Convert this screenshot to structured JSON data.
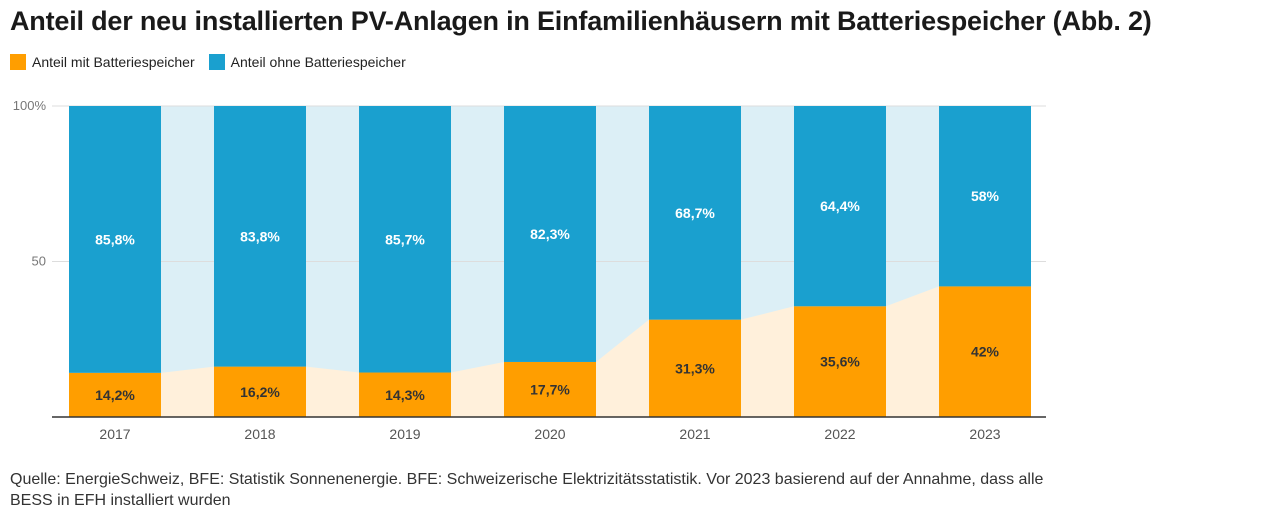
{
  "title": "Anteil der neu installierten PV-Anlagen in Einfamilienhäusern mit Batteriespeicher (Abb. 2)",
  "legend": {
    "with": "Anteil mit Batteriespeicher",
    "without": "Anteil ohne Batteriespeicher"
  },
  "colors": {
    "with": "#FF9E00",
    "without": "#1AA0CF",
    "with_area": "#FFF0DB",
    "without_area": "#DCEFF6"
  },
  "source": "Quelle: EnergieSchweiz, BFE: Statistik Sonnenenergie. BFE: Schweizerische Elektrizitätsstatistik. Vor 2023 basierend auf der Annahme, dass alle BESS in EFH installiert wurden",
  "chart_data": {
    "type": "bar",
    "stacked": true,
    "categories": [
      "2017",
      "2018",
      "2019",
      "2020",
      "2021",
      "2022",
      "2023"
    ],
    "series": [
      {
        "name": "Anteil mit Batteriespeicher",
        "values": [
          14.2,
          16.2,
          14.3,
          17.7,
          31.3,
          35.6,
          42
        ],
        "labels": [
          "14,2%",
          "16,2%",
          "14,3%",
          "17,7%",
          "31,3%",
          "35,6%",
          "42%"
        ]
      },
      {
        "name": "Anteil ohne Batteriespeicher",
        "values": [
          85.8,
          83.8,
          85.7,
          82.3,
          68.7,
          64.4,
          58
        ],
        "labels": [
          "85,8%",
          "83,8%",
          "85,7%",
          "82,3%",
          "68,7%",
          "64,4%",
          "58%"
        ]
      }
    ],
    "ylim": [
      0,
      100
    ],
    "yticks": [
      {
        "value": 0,
        "label": ""
      },
      {
        "value": 50,
        "label": "50"
      },
      {
        "value": 100,
        "label": "100%"
      }
    ],
    "xlabel": "",
    "ylabel": "",
    "legend_position": "top-left"
  }
}
